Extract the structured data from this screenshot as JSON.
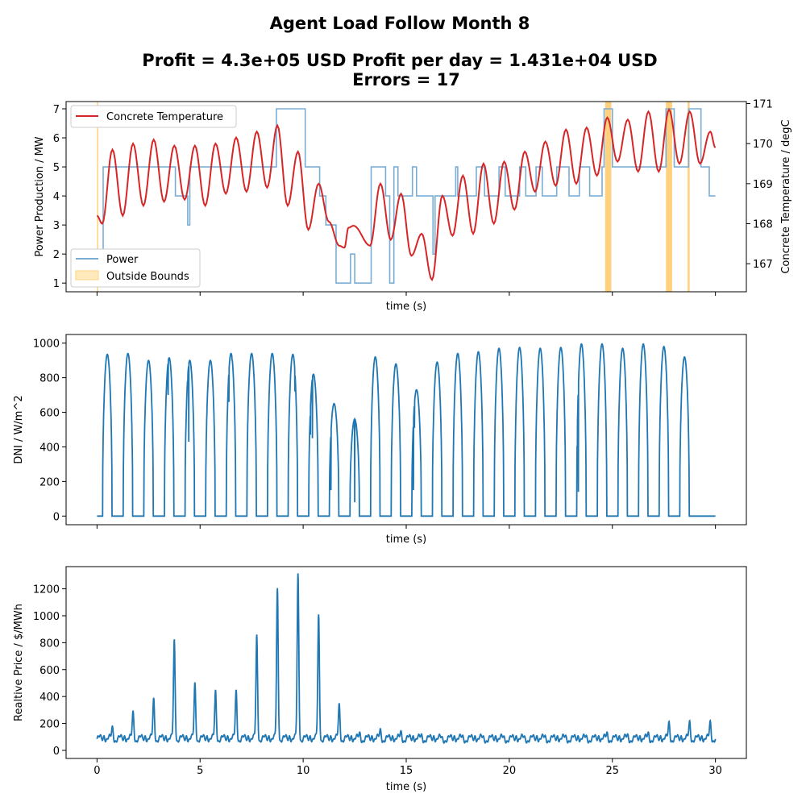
{
  "figure": {
    "title_line1": "Agent Load Follow Month 8",
    "title_line2": "Profit = 4.3e+05 USD  Profit per day = 1.431e+04 USD",
    "title_line3": "Errors = 17"
  },
  "colors": {
    "power": "#7aadd4",
    "temperature": "#d62728",
    "bounds": "#ffc65e",
    "dni": "#1f77b4",
    "price": "#1f77b4"
  },
  "chart_data": [
    {
      "type": "line",
      "xlabel": "time (s)",
      "ylabel": "Power Production / MW",
      "ylabel_right": "Concrete Temperature / degC",
      "xlim": [
        -1.5,
        31.5
      ],
      "ylim": [
        0.7,
        7.25
      ],
      "ylim_right": [
        166.3,
        171.05
      ],
      "xticks": [
        0,
        5,
        10,
        15,
        20,
        25,
        30
      ],
      "xtick_labels_shown": false,
      "yticks": [
        1,
        2,
        3,
        4,
        5,
        6,
        7
      ],
      "yticks_right": [
        167,
        168,
        169,
        170,
        171
      ],
      "legend_upper": {
        "placement": "top-left",
        "entries": [
          "Concrete Temperature"
        ]
      },
      "legend_lower": {
        "placement": "bottom-left",
        "entries": [
          "Power",
          "Outside Bounds"
        ]
      },
      "series": [
        {
          "name": "Power",
          "axis": "left",
          "step": true,
          "points": [
            [
              0,
              1
            ],
            [
              0.3,
              5
            ],
            [
              3.8,
              4
            ],
            [
              4.4,
              3
            ],
            [
              4.5,
              5
            ],
            [
              8.7,
              7
            ],
            [
              10.1,
              5
            ],
            [
              10.8,
              4
            ],
            [
              11.1,
              3
            ],
            [
              11.6,
              1
            ],
            [
              12.3,
              2
            ],
            [
              12.5,
              1
            ],
            [
              13.3,
              5
            ],
            [
              14.0,
              4
            ],
            [
              14.2,
              1
            ],
            [
              14.4,
              5
            ],
            [
              14.6,
              4
            ],
            [
              15.3,
              5
            ],
            [
              15.5,
              4
            ],
            [
              16.3,
              2
            ],
            [
              16.4,
              4
            ],
            [
              17.4,
              5
            ],
            [
              17.5,
              4
            ],
            [
              18.4,
              5
            ],
            [
              18.8,
              4
            ],
            [
              19.5,
              5
            ],
            [
              19.8,
              4
            ],
            [
              20.5,
              5
            ],
            [
              20.8,
              4
            ],
            [
              21.3,
              5
            ],
            [
              21.6,
              4
            ],
            [
              22.3,
              5
            ],
            [
              22.9,
              4
            ],
            [
              23.4,
              5
            ],
            [
              23.9,
              4
            ],
            [
              24.5,
              5
            ],
            [
              24.6,
              7
            ],
            [
              25.0,
              5
            ],
            [
              27.5,
              5
            ],
            [
              27.6,
              7
            ],
            [
              28.0,
              5
            ],
            [
              28.7,
              7
            ],
            [
              29.3,
              5
            ],
            [
              29.7,
              4
            ],
            [
              30,
              4
            ]
          ]
        },
        {
          "name": "Concrete Temperature",
          "axis": "right",
          "points": [
            [
              0,
              168.2
            ],
            [
              0.25,
              168.0
            ],
            [
              0.75,
              169.85
            ],
            [
              1.25,
              168.2
            ],
            [
              1.75,
              170.0
            ],
            [
              2.25,
              168.45
            ],
            [
              2.75,
              170.1
            ],
            [
              3.25,
              168.55
            ],
            [
              3.75,
              169.95
            ],
            [
              4.25,
              168.6
            ],
            [
              4.75,
              169.95
            ],
            [
              5.25,
              168.45
            ],
            [
              5.75,
              170.0
            ],
            [
              6.25,
              168.75
            ],
            [
              6.75,
              170.15
            ],
            [
              7.25,
              168.8
            ],
            [
              7.75,
              170.3
            ],
            [
              8.25,
              168.9
            ],
            [
              8.75,
              170.45
            ],
            [
              9.25,
              168.45
            ],
            [
              9.75,
              169.8
            ],
            [
              10.25,
              167.85
            ],
            [
              10.75,
              169.0
            ],
            [
              11.25,
              168.05
            ],
            [
              11.75,
              167.45
            ],
            [
              12.0,
              167.4
            ],
            [
              12.2,
              167.9
            ],
            [
              12.45,
              167.95
            ],
            [
              13.25,
              167.45
            ],
            [
              13.75,
              169.0
            ],
            [
              14.25,
              167.6
            ],
            [
              14.75,
              168.75
            ],
            [
              15.25,
              167.2
            ],
            [
              15.75,
              167.75
            ],
            [
              16.25,
              166.6
            ],
            [
              16.75,
              168.7
            ],
            [
              17.25,
              167.7
            ],
            [
              17.75,
              169.2
            ],
            [
              18.25,
              167.75
            ],
            [
              18.75,
              169.5
            ],
            [
              19.25,
              168.0
            ],
            [
              19.75,
              169.55
            ],
            [
              20.25,
              168.35
            ],
            [
              20.75,
              169.8
            ],
            [
              21.25,
              168.8
            ],
            [
              21.75,
              170.05
            ],
            [
              22.25,
              168.95
            ],
            [
              22.75,
              170.35
            ],
            [
              23.25,
              169.0
            ],
            [
              23.75,
              170.4
            ],
            [
              24.25,
              169.2
            ],
            [
              24.75,
              170.65
            ],
            [
              25.25,
              169.55
            ],
            [
              25.75,
              170.6
            ],
            [
              26.25,
              169.3
            ],
            [
              26.75,
              170.8
            ],
            [
              27.25,
              169.3
            ],
            [
              27.75,
              170.85
            ],
            [
              28.25,
              169.5
            ],
            [
              28.75,
              170.8
            ],
            [
              29.25,
              169.5
            ],
            [
              29.75,
              170.3
            ],
            [
              30.0,
              169.9
            ]
          ]
        }
      ],
      "outside_bounds_regions": [
        [
          0,
          0.05
        ],
        [
          24.65,
          24.95
        ],
        [
          27.6,
          27.9
        ],
        [
          28.65,
          28.75
        ]
      ]
    },
    {
      "type": "line",
      "xlabel": "time (s)",
      "ylabel": "DNI / W/m^2",
      "xlim": [
        -1.5,
        31.5
      ],
      "ylim": [
        -50,
        1050
      ],
      "xticks": [
        0,
        5,
        10,
        15,
        20,
        25,
        30
      ],
      "xtick_labels_shown": false,
      "yticks": [
        0,
        200,
        400,
        600,
        800,
        1000
      ],
      "daily_peaks": [
        935,
        940,
        900,
        915,
        900,
        900,
        940,
        940,
        940,
        935,
        820,
        650,
        560,
        920,
        880,
        730,
        890,
        940,
        950,
        970,
        975,
        970,
        975,
        995,
        995,
        970,
        995,
        980,
        920
      ],
      "dips": [
        [
          0.8,
          520
        ],
        [
          0.85,
          615
        ],
        [
          3.45,
          700
        ],
        [
          4.45,
          430
        ],
        [
          4.4,
          750
        ],
        [
          6.4,
          660
        ],
        [
          6.55,
          900
        ],
        [
          9.6,
          720
        ],
        [
          10.2,
          690
        ],
        [
          10.35,
          470
        ],
        [
          10.45,
          450
        ],
        [
          11.35,
          150
        ],
        [
          12.5,
          80
        ],
        [
          12.95,
          400
        ],
        [
          13.9,
          240
        ],
        [
          15.35,
          150
        ],
        [
          15.4,
          510
        ],
        [
          15.55,
          730
        ],
        [
          17.75,
          510
        ],
        [
          17.8,
          600
        ],
        [
          23.3,
          350
        ],
        [
          23.35,
          140
        ],
        [
          29.7,
          480
        ],
        [
          29.75,
          610
        ]
      ]
    },
    {
      "type": "line",
      "xlabel": "time (s)",
      "ylabel": "Realtive Price / $/MWh",
      "xlim": [
        -1.5,
        31.5
      ],
      "ylim": [
        -60,
        1365
      ],
      "xticks": [
        0,
        5,
        10,
        15,
        20,
        25,
        30
      ],
      "xtick_labels": [
        "0",
        "5",
        "10",
        "15",
        "20",
        "25",
        "30"
      ],
      "yticks": [
        0,
        200,
        400,
        600,
        800,
        1000,
        1200
      ],
      "daily_peaks": [
        170,
        285,
        380,
        815,
        495,
        440,
        440,
        850,
        1195,
        1305,
        1000,
        340,
        125,
        150,
        135,
        110,
        90,
        100,
        95,
        95,
        95,
        100,
        100,
        100,
        125,
        110,
        125,
        205,
        210
      ],
      "baseline": 85
    }
  ]
}
